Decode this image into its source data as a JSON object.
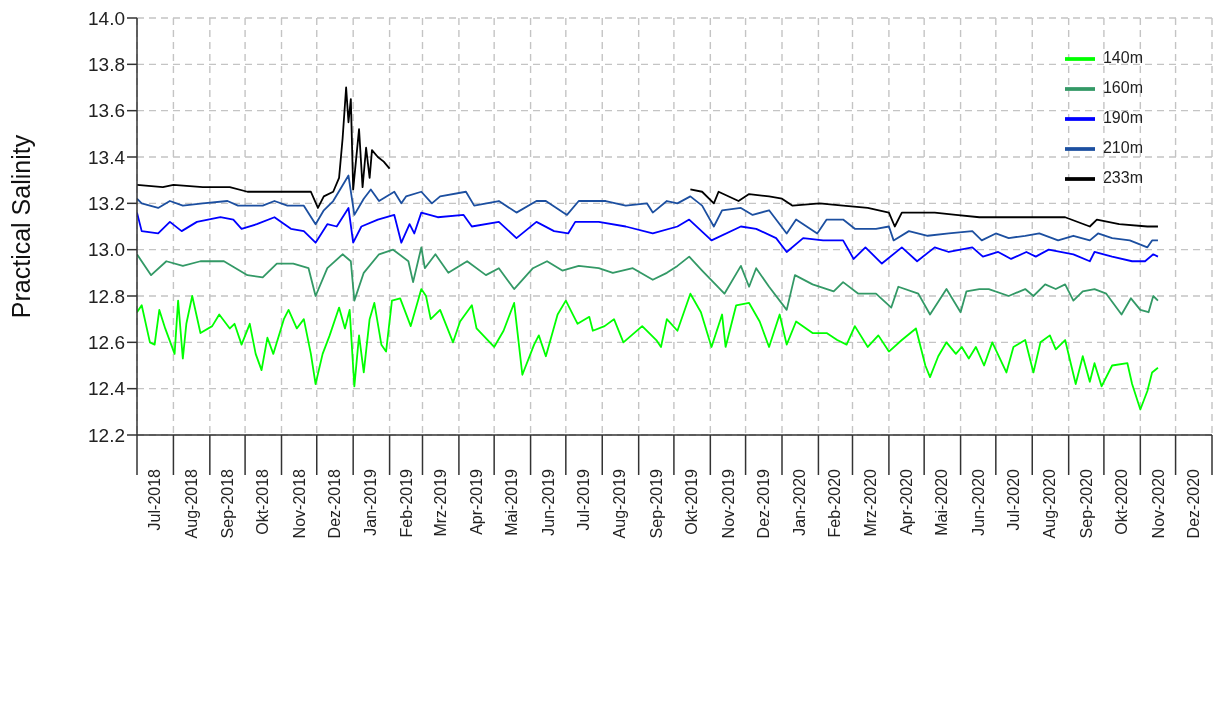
{
  "chart_data": {
    "type": "line",
    "ylabel": "Practical Salinity",
    "ylim": [
      12.2,
      14.0
    ],
    "yticks": [
      {
        "value": 12.2,
        "label": "12.2"
      },
      12.4,
      12.6,
      12.8,
      {
        "value": 13.0,
        "label": "13.0"
      },
      13.2,
      13.4,
      13.6,
      13.8,
      {
        "value": 14.0,
        "label": "14.0"
      }
    ],
    "xlim": [
      "2018-07-01",
      "2021-01-01"
    ],
    "xticks": [
      {
        "value": "2018-07-01",
        "label": null
      },
      {
        "value": "2018-07-16",
        "label": "Jul-2018"
      },
      {
        "value": "2018-08-01",
        "label": null
      },
      {
        "value": "2018-08-16",
        "label": "Aug-2018"
      },
      {
        "value": "2018-09-01",
        "label": null
      },
      {
        "value": "2018-09-16",
        "label": "Sep-2018"
      },
      {
        "value": "2018-10-01",
        "label": null
      },
      {
        "value": "2018-10-16",
        "label": "Okt-2018"
      },
      {
        "value": "2018-11-01",
        "label": null
      },
      {
        "value": "2018-11-16",
        "label": "Nov-2018"
      },
      {
        "value": "2018-12-01",
        "label": null
      },
      {
        "value": "2018-12-16",
        "label": "Dez-2018"
      },
      {
        "value": "2019-01-01",
        "label": null
      },
      {
        "value": "2019-01-16",
        "label": "Jan-2019"
      },
      {
        "value": "2019-02-01",
        "label": null
      },
      {
        "value": "2019-02-15",
        "label": "Feb-2019"
      },
      {
        "value": "2019-03-01",
        "label": null
      },
      {
        "value": "2019-03-16",
        "label": "Mrz-2019"
      },
      {
        "value": "2019-04-01",
        "label": null
      },
      {
        "value": "2019-04-16",
        "label": "Apr-2019"
      },
      {
        "value": "2019-05-01",
        "label": null
      },
      {
        "value": "2019-05-16",
        "label": "Mai-2019"
      },
      {
        "value": "2019-06-01",
        "label": null
      },
      {
        "value": "2019-06-16",
        "label": "Jun-2019"
      },
      {
        "value": "2019-07-01",
        "label": null
      },
      {
        "value": "2019-07-16",
        "label": "Jul-2019"
      },
      {
        "value": "2019-08-01",
        "label": null
      },
      {
        "value": "2019-08-16",
        "label": "Aug-2019"
      },
      {
        "value": "2019-09-01",
        "label": null
      },
      {
        "value": "2019-09-16",
        "label": "Sep-2019"
      },
      {
        "value": "2019-10-01",
        "label": null
      },
      {
        "value": "2019-10-16",
        "label": "Okt-2019"
      },
      {
        "value": "2019-11-01",
        "label": null
      },
      {
        "value": "2019-11-16",
        "label": "Nov-2019"
      },
      {
        "value": "2019-12-01",
        "label": null
      },
      {
        "value": "2019-12-16",
        "label": "Dez-2019"
      },
      {
        "value": "2020-01-01",
        "label": null
      },
      {
        "value": "2020-01-16",
        "label": "Jan-2020"
      },
      {
        "value": "2020-02-01",
        "label": null
      },
      {
        "value": "2020-02-15",
        "label": "Feb-2020"
      },
      {
        "value": "2020-03-01",
        "label": null
      },
      {
        "value": "2020-03-16",
        "label": "Mrz-2020"
      },
      {
        "value": "2020-04-01",
        "label": null
      },
      {
        "value": "2020-04-16",
        "label": "Apr-2020"
      },
      {
        "value": "2020-05-01",
        "label": null
      },
      {
        "value": "2020-05-16",
        "label": "Mai-2020"
      },
      {
        "value": "2020-06-01",
        "label": null
      },
      {
        "value": "2020-06-16",
        "label": "Jun-2020"
      },
      {
        "value": "2020-07-01",
        "label": null
      },
      {
        "value": "2020-07-16",
        "label": "Jul-2020"
      },
      {
        "value": "2020-08-01",
        "label": null
      },
      {
        "value": "2020-08-16",
        "label": "Aug-2020"
      },
      {
        "value": "2020-09-01",
        "label": null
      },
      {
        "value": "2020-09-16",
        "label": "Sep-2020"
      },
      {
        "value": "2020-10-01",
        "label": null
      },
      {
        "value": "2020-10-16",
        "label": "Okt-2020"
      },
      {
        "value": "2020-11-01",
        "label": null
      },
      {
        "value": "2020-11-16",
        "label": "Nov-2020"
      },
      {
        "value": "2020-12-01",
        "label": null
      },
      {
        "value": "2020-12-16",
        "label": "Dez-2020"
      },
      {
        "value": "2021-01-01",
        "label": null
      }
    ],
    "grid": true,
    "legend": "top right",
    "marker": "none",
    "line_style": "solid",
    "series": [
      {
        "name": "140m",
        "color": "#00ff00",
        "x": [
          "2018-07-01",
          "2018-07-05",
          "2018-07-12",
          "2018-07-16",
          "2018-07-20",
          "2018-07-25",
          "2018-08-02",
          "2018-08-05",
          "2018-08-09",
          "2018-08-12",
          "2018-08-17",
          "2018-08-24",
          "2018-09-03",
          "2018-09-09",
          "2018-09-18",
          "2018-09-22",
          "2018-09-28",
          "2018-10-05",
          "2018-10-10",
          "2018-10-15",
          "2018-10-20",
          "2018-10-25",
          "2018-11-03",
          "2018-11-07",
          "2018-11-14",
          "2018-11-20",
          "2018-11-26",
          "2018-11-30",
          "2018-12-06",
          "2018-12-12",
          "2018-12-20",
          "2018-12-25",
          "2018-12-29",
          "2019-01-02",
          "2019-01-06",
          "2019-01-10",
          "2019-01-15",
          "2019-01-19",
          "2019-01-25",
          "2019-01-29",
          "2019-02-03",
          "2019-02-10",
          "2019-02-19",
          "2019-02-28",
          "2019-03-04",
          "2019-03-08",
          "2019-03-16",
          "2019-03-27",
          "2019-04-02",
          "2019-04-12",
          "2019-04-16",
          "2019-05-01",
          "2019-05-09",
          "2019-05-18",
          "2019-05-25",
          "2019-06-04",
          "2019-06-08",
          "2019-06-14",
          "2019-06-24",
          "2019-07-01",
          "2019-07-11",
          "2019-07-21",
          "2019-07-24",
          "2019-08-03",
          "2019-08-11",
          "2019-08-19",
          "2019-09-04",
          "2019-09-16",
          "2019-09-20",
          "2019-09-25",
          "2019-10-04",
          "2019-10-15",
          "2019-10-24",
          "2019-11-02",
          "2019-11-11",
          "2019-11-14",
          "2019-11-23",
          "2019-12-04",
          "2019-12-13",
          "2019-12-21",
          "2019-12-30",
          "2020-01-05",
          "2020-01-13",
          "2020-01-27",
          "2020-02-08",
          "2020-02-17",
          "2020-02-25",
          "2020-03-03",
          "2020-03-14",
          "2020-03-23",
          "2020-04-01",
          "2020-04-12",
          "2020-04-24",
          "2020-05-02",
          "2020-05-06",
          "2020-05-13",
          "2020-05-20",
          "2020-05-28",
          "2020-06-02",
          "2020-06-08",
          "2020-06-14",
          "2020-06-21",
          "2020-06-28",
          "2020-07-10",
          "2020-07-16",
          "2020-07-26",
          "2020-08-02",
          "2020-08-08",
          "2020-08-16",
          "2020-08-21",
          "2020-08-29",
          "2020-09-07",
          "2020-09-13",
          "2020-09-19",
          "2020-09-23",
          "2020-09-29",
          "2020-10-08",
          "2020-10-21",
          "2020-10-25",
          "2020-11-01",
          "2020-11-07",
          "2020-11-11",
          "2020-11-16"
        ],
        "values": [
          12.73,
          12.76,
          12.6,
          12.59,
          12.74,
          12.66,
          12.55,
          12.78,
          12.53,
          12.68,
          12.8,
          12.64,
          12.67,
          12.72,
          12.66,
          12.68,
          12.59,
          12.68,
          12.55,
          12.48,
          12.62,
          12.55,
          12.7,
          12.74,
          12.66,
          12.7,
          12.55,
          12.42,
          12.55,
          12.63,
          12.75,
          12.66,
          12.74,
          12.41,
          12.63,
          12.47,
          12.7,
          12.77,
          12.59,
          12.56,
          12.78,
          12.79,
          12.67,
          12.83,
          12.8,
          12.7,
          12.74,
          12.6,
          12.69,
          12.76,
          12.66,
          12.58,
          12.65,
          12.77,
          12.46,
          12.59,
          12.63,
          12.54,
          12.72,
          12.78,
          12.68,
          12.71,
          12.65,
          12.67,
          12.7,
          12.6,
          12.67,
          12.61,
          12.58,
          12.7,
          12.65,
          12.81,
          12.73,
          12.58,
          12.72,
          12.58,
          12.76,
          12.77,
          12.69,
          12.58,
          12.72,
          12.59,
          12.69,
          12.64,
          12.64,
          12.61,
          12.59,
          12.67,
          12.58,
          12.63,
          12.56,
          12.61,
          12.66,
          12.5,
          12.45,
          12.54,
          12.6,
          12.55,
          12.58,
          12.53,
          12.58,
          12.5,
          12.6,
          12.47,
          12.58,
          12.61,
          12.47,
          12.6,
          12.63,
          12.57,
          12.61,
          12.42,
          12.54,
          12.43,
          12.51,
          12.41,
          12.5,
          12.51,
          12.42,
          12.31,
          12.39,
          12.47,
          12.49
        ]
      },
      {
        "name": "160m",
        "color": "#339966",
        "x": [
          "2018-07-01",
          "2018-07-13",
          "2018-07-26",
          "2018-08-09",
          "2018-08-24",
          "2018-09-13",
          "2018-10-03",
          "2018-10-16",
          "2018-10-28",
          "2018-11-11",
          "2018-11-24",
          "2018-11-30",
          "2018-12-10",
          "2018-12-23",
          "2018-12-30",
          "2019-01-02",
          "2019-01-10",
          "2019-01-23",
          "2019-02-04",
          "2019-02-17",
          "2019-02-21",
          "2019-02-28",
          "2019-03-03",
          "2019-03-12",
          "2019-03-23",
          "2019-04-08",
          "2019-04-24",
          "2019-05-05",
          "2019-05-18",
          "2019-06-03",
          "2019-06-15",
          "2019-06-28",
          "2019-07-12",
          "2019-07-29",
          "2019-08-10",
          "2019-08-27",
          "2019-09-13",
          "2019-09-25",
          "2019-10-04",
          "2019-10-14",
          "2019-10-25",
          "2019-11-13",
          "2019-11-27",
          "2019-12-04",
          "2019-12-10",
          "2019-12-21",
          "2020-01-05",
          "2020-01-12",
          "2020-01-27",
          "2020-02-14",
          "2020-02-22",
          "2020-03-06",
          "2020-03-21",
          "2020-04-03",
          "2020-04-09",
          "2020-04-26",
          "2020-05-06",
          "2020-05-20",
          "2020-06-01",
          "2020-06-06",
          "2020-06-17",
          "2020-06-25",
          "2020-07-12",
          "2020-07-26",
          "2020-08-02",
          "2020-08-12",
          "2020-08-21",
          "2020-08-29",
          "2020-09-05",
          "2020-09-13",
          "2020-09-23",
          "2020-10-03",
          "2020-10-16",
          "2020-10-24",
          "2020-11-01",
          "2020-11-08",
          "2020-11-12",
          "2020-11-16"
        ],
        "values": [
          12.98,
          12.89,
          12.95,
          12.93,
          12.95,
          12.95,
          12.89,
          12.88,
          12.94,
          12.94,
          12.92,
          12.8,
          12.92,
          12.98,
          12.95,
          12.78,
          12.9,
          12.98,
          13.0,
          12.95,
          12.86,
          13.01,
          12.92,
          12.98,
          12.9,
          12.95,
          12.89,
          12.92,
          12.83,
          12.92,
          12.95,
          12.91,
          12.93,
          12.92,
          12.9,
          12.92,
          12.87,
          12.9,
          12.93,
          12.97,
          12.91,
          12.81,
          12.93,
          12.84,
          12.92,
          12.84,
          12.74,
          12.89,
          12.85,
          12.82,
          12.86,
          12.81,
          12.81,
          12.75,
          12.84,
          12.81,
          12.72,
          12.83,
          12.73,
          12.82,
          12.83,
          12.83,
          12.8,
          12.83,
          12.8,
          12.85,
          12.83,
          12.85,
          12.78,
          12.82,
          12.83,
          12.81,
          12.72,
          12.79,
          12.74,
          12.73,
          12.8,
          12.78
        ]
      },
      {
        "name": "190m",
        "color": "#0000ff",
        "x": [
          "2018-07-01",
          "2018-07-05",
          "2018-07-19",
          "2018-07-29",
          "2018-08-08",
          "2018-08-21",
          "2018-09-10",
          "2018-09-21",
          "2018-09-28",
          "2018-10-11",
          "2018-10-26",
          "2018-11-09",
          "2018-11-20",
          "2018-11-30",
          "2018-12-10",
          "2018-12-18",
          "2018-12-28",
          "2019-01-01",
          "2019-01-08",
          "2019-01-22",
          "2019-02-05",
          "2019-02-11",
          "2019-02-18",
          "2019-02-22",
          "2019-02-28",
          "2019-03-14",
          "2019-04-05",
          "2019-04-12",
          "2019-05-05",
          "2019-05-20",
          "2019-06-06",
          "2019-06-21",
          "2019-07-03",
          "2019-07-09",
          "2019-07-29",
          "2019-08-21",
          "2019-09-13",
          "2019-10-04",
          "2019-10-14",
          "2019-11-02",
          "2019-11-27",
          "2019-12-10",
          "2019-12-27",
          "2020-01-05",
          "2020-01-19",
          "2020-02-05",
          "2020-02-22",
          "2020-03-02",
          "2020-03-12",
          "2020-03-26",
          "2020-04-12",
          "2020-04-25",
          "2020-05-10",
          "2020-05-22",
          "2020-06-11",
          "2020-06-20",
          "2020-07-03",
          "2020-07-14",
          "2020-07-27",
          "2020-08-04",
          "2020-08-15",
          "2020-09-05",
          "2020-09-19",
          "2020-09-23",
          "2020-10-08",
          "2020-10-25",
          "2020-11-05",
          "2020-11-12",
          "2020-11-16"
        ],
        "values": [
          13.16,
          13.08,
          13.07,
          13.12,
          13.08,
          13.12,
          13.14,
          13.13,
          13.09,
          13.11,
          13.14,
          13.09,
          13.08,
          13.03,
          13.11,
          13.1,
          13.18,
          13.03,
          13.1,
          13.13,
          13.15,
          13.03,
          13.11,
          13.07,
          13.16,
          13.14,
          13.15,
          13.1,
          13.12,
          13.05,
          13.12,
          13.08,
          13.07,
          13.12,
          13.12,
          13.1,
          13.07,
          13.1,
          13.13,
          13.04,
          13.1,
          13.09,
          13.05,
          12.99,
          13.05,
          13.04,
          13.04,
          12.96,
          13.01,
          12.94,
          13.01,
          12.95,
          13.01,
          12.99,
          13.01,
          12.97,
          12.99,
          12.96,
          12.99,
          12.97,
          13.0,
          12.98,
          12.95,
          12.99,
          12.97,
          12.95,
          12.95,
          12.98,
          12.97
        ]
      },
      {
        "name": "210m",
        "color": "#1c4fa0",
        "x": [
          "2018-07-01",
          "2018-07-05",
          "2018-07-19",
          "2018-07-29",
          "2018-08-09",
          "2018-08-26",
          "2018-09-16",
          "2018-09-25",
          "2018-10-08",
          "2018-10-16",
          "2018-10-26",
          "2018-11-06",
          "2018-11-20",
          "2018-11-30",
          "2018-12-07",
          "2018-12-15",
          "2018-12-28",
          "2019-01-02",
          "2019-01-10",
          "2019-01-16",
          "2019-01-23",
          "2019-02-05",
          "2019-02-11",
          "2019-02-15",
          "2019-02-28",
          "2019-03-09",
          "2019-03-16",
          "2019-04-07",
          "2019-04-14",
          "2019-05-05",
          "2019-05-20",
          "2019-06-06",
          "2019-06-14",
          "2019-07-02",
          "2019-07-12",
          "2019-08-04",
          "2019-08-21",
          "2019-09-08",
          "2019-09-13",
          "2019-09-25",
          "2019-10-04",
          "2019-10-15",
          "2019-10-25",
          "2019-11-04",
          "2019-11-11",
          "2019-11-27",
          "2019-12-07",
          "2019-12-21",
          "2020-01-05",
          "2020-01-13",
          "2020-01-31",
          "2020-02-08",
          "2020-02-22",
          "2020-03-03",
          "2020-03-21",
          "2020-04-01",
          "2020-04-05",
          "2020-04-18",
          "2020-05-04",
          "2020-05-22",
          "2020-06-11",
          "2020-06-19",
          "2020-07-01",
          "2020-07-12",
          "2020-07-26",
          "2020-08-07",
          "2020-08-23",
          "2020-09-05",
          "2020-09-19",
          "2020-09-26",
          "2020-10-08",
          "2020-10-23",
          "2020-11-07",
          "2020-11-11",
          "2020-11-16"
        ],
        "values": [
          13.22,
          13.2,
          13.18,
          13.21,
          13.19,
          13.2,
          13.21,
          13.19,
          13.19,
          13.19,
          13.21,
          13.19,
          13.19,
          13.11,
          13.17,
          13.21,
          13.32,
          13.15,
          13.22,
          13.26,
          13.21,
          13.25,
          13.2,
          13.23,
          13.25,
          13.2,
          13.23,
          13.25,
          13.19,
          13.21,
          13.16,
          13.21,
          13.21,
          13.15,
          13.21,
          13.21,
          13.19,
          13.2,
          13.16,
          13.21,
          13.2,
          13.23,
          13.19,
          13.1,
          13.17,
          13.18,
          13.15,
          13.17,
          13.07,
          13.13,
          13.07,
          13.13,
          13.13,
          13.09,
          13.09,
          13.1,
          13.04,
          13.08,
          13.06,
          13.07,
          13.08,
          13.04,
          13.07,
          13.05,
          13.06,
          13.07,
          13.04,
          13.06,
          13.04,
          13.07,
          13.05,
          13.04,
          13.01,
          13.04,
          13.04
        ]
      },
      {
        "name": "233m",
        "color": "#000000",
        "x": [
          "2018-07-01",
          "2018-07-23",
          "2018-08-01",
          "2018-08-26",
          "2018-09-18",
          "2018-10-03",
          "2018-10-25",
          "2018-11-11",
          "2018-11-26",
          "2018-12-02",
          "2018-12-07",
          "2018-12-15",
          "2018-12-20",
          "2018-12-23",
          "2018-12-26",
          "2018-12-28",
          "2018-12-30",
          "2019-01-01",
          "2019-01-06",
          "2019-01-09",
          "2019-01-12",
          "2019-01-15",
          "2019-01-17",
          "2019-01-22",
          "2019-01-27",
          "2019-02-01",
          "2019-06-01",
          "2019-10-15",
          "2019-10-25",
          "2019-11-04",
          "2019-11-08",
          "2019-11-25",
          "2019-12-04",
          "2019-12-21",
          "2020-01-01",
          "2020-01-10",
          "2020-02-02",
          "2020-02-22",
          "2020-03-14",
          "2020-04-01",
          "2020-04-06",
          "2020-04-12",
          "2020-05-10",
          "2020-05-28",
          "2020-06-17",
          "2020-07-12",
          "2020-08-04",
          "2020-08-29",
          "2020-09-19",
          "2020-09-25",
          "2020-10-14",
          "2020-11-07",
          "2020-11-16"
        ],
        "values": [
          13.28,
          13.27,
          13.28,
          13.27,
          13.27,
          13.25,
          13.25,
          13.25,
          13.25,
          13.18,
          13.23,
          13.25,
          13.31,
          13.48,
          13.7,
          13.55,
          13.65,
          13.26,
          13.52,
          13.27,
          13.44,
          13.31,
          13.43,
          13.4,
          13.38,
          13.35,
          null,
          13.26,
          13.25,
          13.2,
          13.25,
          13.21,
          13.24,
          13.23,
          13.22,
          13.19,
          13.2,
          13.19,
          13.18,
          13.16,
          13.1,
          13.16,
          13.16,
          13.15,
          13.14,
          13.14,
          13.14,
          13.14,
          13.1,
          13.13,
          13.11,
          13.1,
          13.1
        ]
      }
    ]
  }
}
